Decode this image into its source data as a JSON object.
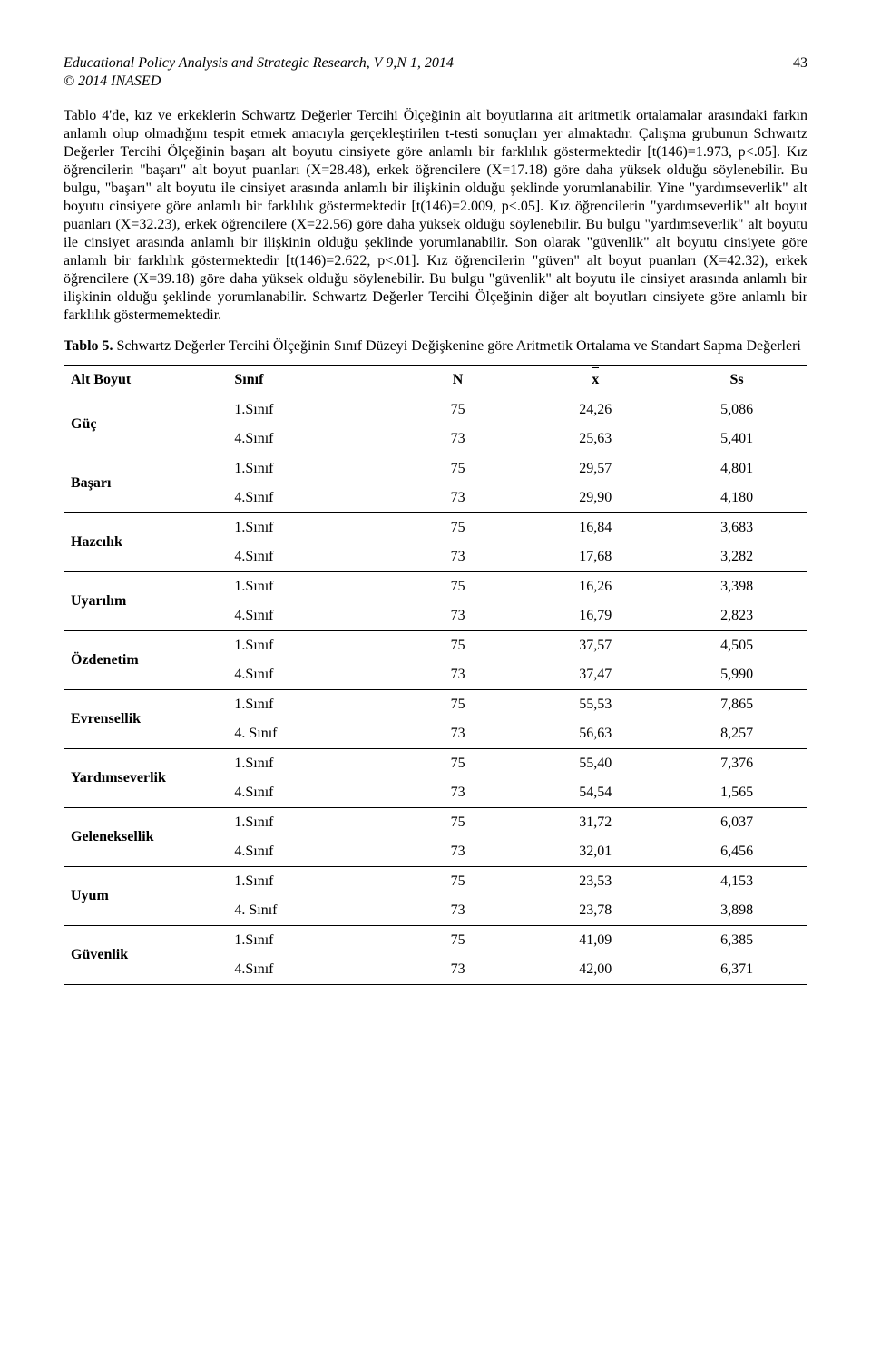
{
  "header": {
    "journal": "Educational Policy Analysis and Strategic Research, V 9,N 1, 2014",
    "copyright": "© 2014  INASED",
    "page_number": "43"
  },
  "paragraph": "Tablo 4'de, kız ve erkeklerin Schwartz Değerler Tercihi Ölçeğinin alt boyutlarına ait aritmetik ortalamalar arasındaki farkın anlamlı olup olmadığını tespit etmek amacıyla gerçekleştirilen t-testi sonuçları yer almaktadır. Çalışma grubunun Schwartz Değerler Tercihi Ölçeğinin başarı alt boyutu cinsiyete göre anlamlı bir farklılık göstermektedir [t(146)=1.973, p<.05]. Kız öğrencilerin \"başarı\"  alt boyut puanları (X=28.48), erkek öğrencilere (X=17.18) göre daha yüksek olduğu söylenebilir. Bu bulgu, \"başarı\" alt boyutu ile cinsiyet arasında anlamlı bir ilişkinin olduğu şeklinde yorumlanabilir. Yine \"yardımseverlik\" alt boyutu  cinsiyete göre anlamlı bir farklılık göstermektedir [t(146)=2.009, p<.05]. Kız öğrencilerin \"yardımseverlik\" alt boyut puanları (X=32.23), erkek öğrencilere (X=22.56) göre daha yüksek olduğu söylenebilir. Bu bulgu \"yardımseverlik\" alt boyutu ile cinsiyet arasında anlamlı bir ilişkinin olduğu şeklinde yorumlanabilir. Son olarak \"güvenlik\" alt boyutu cinsiyete göre anlamlı bir farklılık göstermektedir [t(146)=2.622, p<.01]. Kız öğrencilerin \"güven\" alt boyut puanları (X=42.32), erkek öğrencilere (X=39.18) göre daha yüksek olduğu söylenebilir. Bu bulgu \"güvenlik\" alt boyutu ile cinsiyet arasında anlamlı bir ilişkinin olduğu şeklinde yorumlanabilir. Schwartz Değerler Tercihi Ölçeğinin diğer alt boyutları  cinsiyete göre anlamlı bir farklılık göstermemektedir.",
  "table_title_lead": "Tablo 5.",
  "table_title_rest": " Schwartz Değerler Tercihi Ölçeğinin Sınıf Düzeyi Değişkenine göre Aritmetik Ortalama ve Standart Sapma Değerleri",
  "table": {
    "columns": [
      "Alt Boyut",
      "Sınıf",
      "N",
      "x",
      "Ss"
    ],
    "col_widths_pct": [
      22,
      22,
      18,
      19,
      19
    ],
    "groups": [
      {
        "label": "Güç",
        "rows": [
          [
            "1.Sınıf",
            "75",
            "24,26",
            "5,086"
          ],
          [
            "4.Sınıf",
            "73",
            "25,63",
            "5,401"
          ]
        ]
      },
      {
        "label": "Başarı",
        "rows": [
          [
            "1.Sınıf",
            "75",
            "29,57",
            "4,801"
          ],
          [
            "4.Sınıf",
            "73",
            "29,90",
            "4,180"
          ]
        ]
      },
      {
        "label": "Hazcılık",
        "rows": [
          [
            "1.Sınıf",
            "75",
            "16,84",
            "3,683"
          ],
          [
            "4.Sınıf",
            "73",
            "17,68",
            "3,282"
          ]
        ]
      },
      {
        "label": "Uyarılım",
        "rows": [
          [
            "1.Sınıf",
            "75",
            "16,26",
            "3,398"
          ],
          [
            "4.Sınıf",
            "73",
            "16,79",
            "2,823"
          ]
        ]
      },
      {
        "label": "Özdenetim",
        "rows": [
          [
            "1.Sınıf",
            "75",
            "37,57",
            "4,505"
          ],
          [
            "4.Sınıf",
            "73",
            "37,47",
            "5,990"
          ]
        ]
      },
      {
        "label": "Evrensellik",
        "rows": [
          [
            "1.Sınıf",
            "75",
            "55,53",
            "7,865"
          ],
          [
            "4. Sınıf",
            "73",
            "56,63",
            "8,257"
          ]
        ]
      },
      {
        "label": "Yardımseverlik",
        "rows": [
          [
            "1.Sınıf",
            "75",
            "55,40",
            "7,376"
          ],
          [
            "4.Sınıf",
            "73",
            "54,54",
            "1,565"
          ]
        ]
      },
      {
        "label": "Geleneksellik",
        "rows": [
          [
            "1.Sınıf",
            "75",
            "31,72",
            "6,037"
          ],
          [
            "4.Sınıf",
            "73",
            "32,01",
            "6,456"
          ]
        ]
      },
      {
        "label": "Uyum",
        "rows": [
          [
            "1.Sınıf",
            "75",
            "23,53",
            "4,153"
          ],
          [
            "4. Sınıf",
            "73",
            "23,78",
            "3,898"
          ]
        ]
      },
      {
        "label": "Güvenlik",
        "rows": [
          [
            "1.Sınıf",
            "75",
            "41,09",
            "6,385"
          ],
          [
            "4.Sınıf",
            "73",
            "42,00",
            "6,371"
          ]
        ]
      }
    ]
  }
}
